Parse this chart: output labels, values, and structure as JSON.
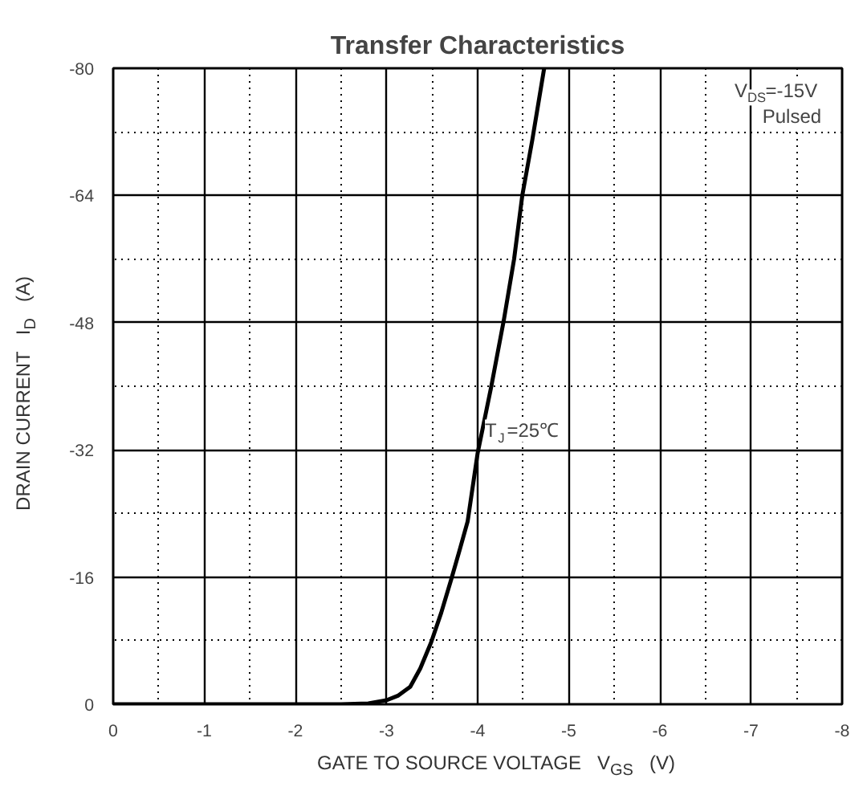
{
  "chart_data": {
    "type": "line",
    "title": "Transfer Characteristics",
    "xlabel": "GATE TO SOURCE VOLTAGE   V$_{GS}$   (V)",
    "ylabel": "DRAIN CURRENT   I$_{D}$   (A)",
    "x": [
      0,
      -1,
      -2,
      -2.5,
      -2.8,
      -3,
      -3.13,
      -3.26,
      -3.37,
      -3.49,
      -3.6,
      -3.71,
      -3.8,
      -3.89,
      -4.0,
      -4.15,
      -4.29,
      -4.4,
      -4.49,
      -4.6,
      -4.73
    ],
    "series": [
      {
        "color": "#000000",
        "values": [
          0,
          0,
          0,
          0,
          -0.1,
          -0.5,
          -1.1,
          -2.2,
          -4.5,
          -7.8,
          -11.5,
          -15.7,
          -19.3,
          -23,
          -31.6,
          -40,
          -48.5,
          -56,
          -64,
          -71,
          -80
        ]
      }
    ],
    "xlim": [
      0,
      -8
    ],
    "ylim": [
      0,
      -80
    ],
    "xticks": [
      0,
      -1,
      -2,
      -3,
      -4,
      -5,
      -6,
      -7,
      -8
    ],
    "yticks": [
      0,
      -16,
      -32,
      -48,
      -64,
      -80
    ],
    "grid": true,
    "marker": "none",
    "line_style": "solid",
    "annotations": [
      "V$_{DS}$=-15V",
      "Pulsed",
      "T$_{J}$=25℃"
    ]
  }
}
